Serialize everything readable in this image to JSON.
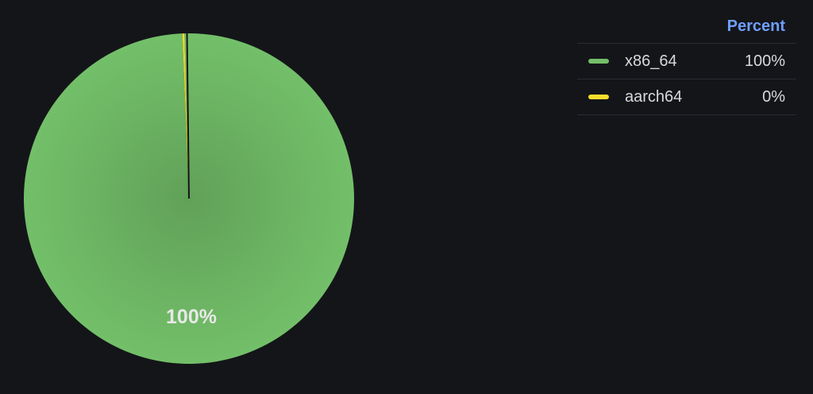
{
  "chart_data": {
    "type": "pie",
    "slices": [
      {
        "label": "x86_64",
        "value": 100,
        "display": "100%",
        "color": "#73bf69"
      },
      {
        "label": "aarch64",
        "value": 0,
        "display": "0%",
        "color": "#fade2a"
      }
    ],
    "slice_labels": [
      "100%"
    ],
    "legend": {
      "placement": "top-right",
      "header": "Percent"
    }
  },
  "colors": {
    "background": "#141519",
    "header_text": "#6e9fff",
    "legend_text": "#d8d9da",
    "divider": "#2a2c33"
  }
}
